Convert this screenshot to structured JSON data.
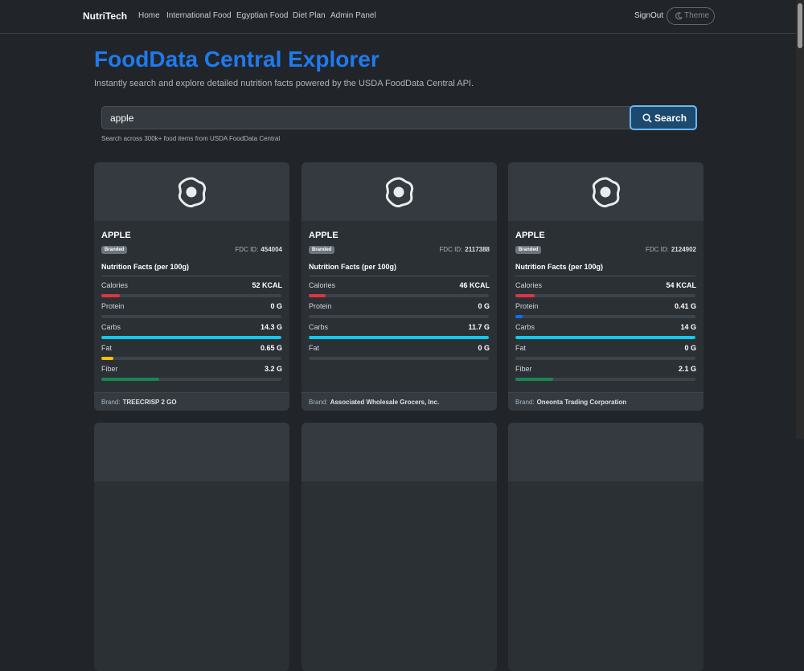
{
  "nav": {
    "brand": "NutriTech",
    "links": [
      "Home",
      "International Food",
      "Egyptian Food",
      "Diet Plan",
      "Admin Panel"
    ],
    "signout": "SignOut",
    "theme": "Theme"
  },
  "header": {
    "title": "FoodData Central Explorer",
    "subtitle": "Instantly search and explore detailed nutrition facts powered by the USDA FoodData Central API."
  },
  "search": {
    "query": "apple",
    "button": "Search",
    "hint": "Search across 300k+ food items from USDA FoodData Central"
  },
  "cards": [
    {
      "name": "APPLE",
      "badge": "Branded",
      "fdc_label": "FDC ID:",
      "fdc_id": "454004",
      "facts_title": "Nutrition Facts (per 100g)",
      "brand_label": "Brand:",
      "brand": "TREECRISP 2 GO",
      "nutrients": [
        {
          "name": "Calories",
          "value": 52,
          "label": "52 KCAL",
          "color": "#dc3545"
        },
        {
          "name": "Protein",
          "value": 0,
          "label": "0 G",
          "color": "#0d6efd"
        },
        {
          "name": "Carbs",
          "value": 14.3,
          "label": "14.3 G",
          "color": "#0dcaf0"
        },
        {
          "name": "Fat",
          "value": 0.65,
          "label": "0.65 G",
          "color": "#ffc107"
        },
        {
          "name": "Fiber",
          "value": 3.2,
          "label": "3.2 G",
          "color": "#198754"
        }
      ]
    },
    {
      "name": "APPLE",
      "badge": "Branded",
      "fdc_label": "FDC ID:",
      "fdc_id": "2117388",
      "facts_title": "Nutrition Facts (per 100g)",
      "brand_label": "Brand:",
      "brand": "Associated Wholesale Grocers, Inc.",
      "nutrients": [
        {
          "name": "Calories",
          "value": 46,
          "label": "46 KCAL",
          "color": "#dc3545"
        },
        {
          "name": "Protein",
          "value": 0,
          "label": "0 G",
          "color": "#0d6efd"
        },
        {
          "name": "Carbs",
          "value": 11.7,
          "label": "11.7 G",
          "color": "#0dcaf0"
        },
        {
          "name": "Fat",
          "value": 0,
          "label": "0 G",
          "color": "#ffc107"
        }
      ]
    },
    {
      "name": "APPLE",
      "badge": "Branded",
      "fdc_label": "FDC ID:",
      "fdc_id": "2124902",
      "facts_title": "Nutrition Facts (per 100g)",
      "brand_label": "Brand:",
      "brand": "Oneonta Trading Corporation",
      "nutrients": [
        {
          "name": "Calories",
          "value": 54,
          "label": "54 KCAL",
          "color": "#dc3545"
        },
        {
          "name": "Protein",
          "value": 0.41,
          "label": "0.41 G",
          "color": "#0d6efd"
        },
        {
          "name": "Carbs",
          "value": 14,
          "label": "14 G",
          "color": "#0dcaf0"
        },
        {
          "name": "Fat",
          "value": 0,
          "label": "0 G",
          "color": "#ffc107"
        },
        {
          "name": "Fiber",
          "value": 2.1,
          "label": "2.1 G",
          "color": "#198754"
        }
      ]
    }
  ]
}
